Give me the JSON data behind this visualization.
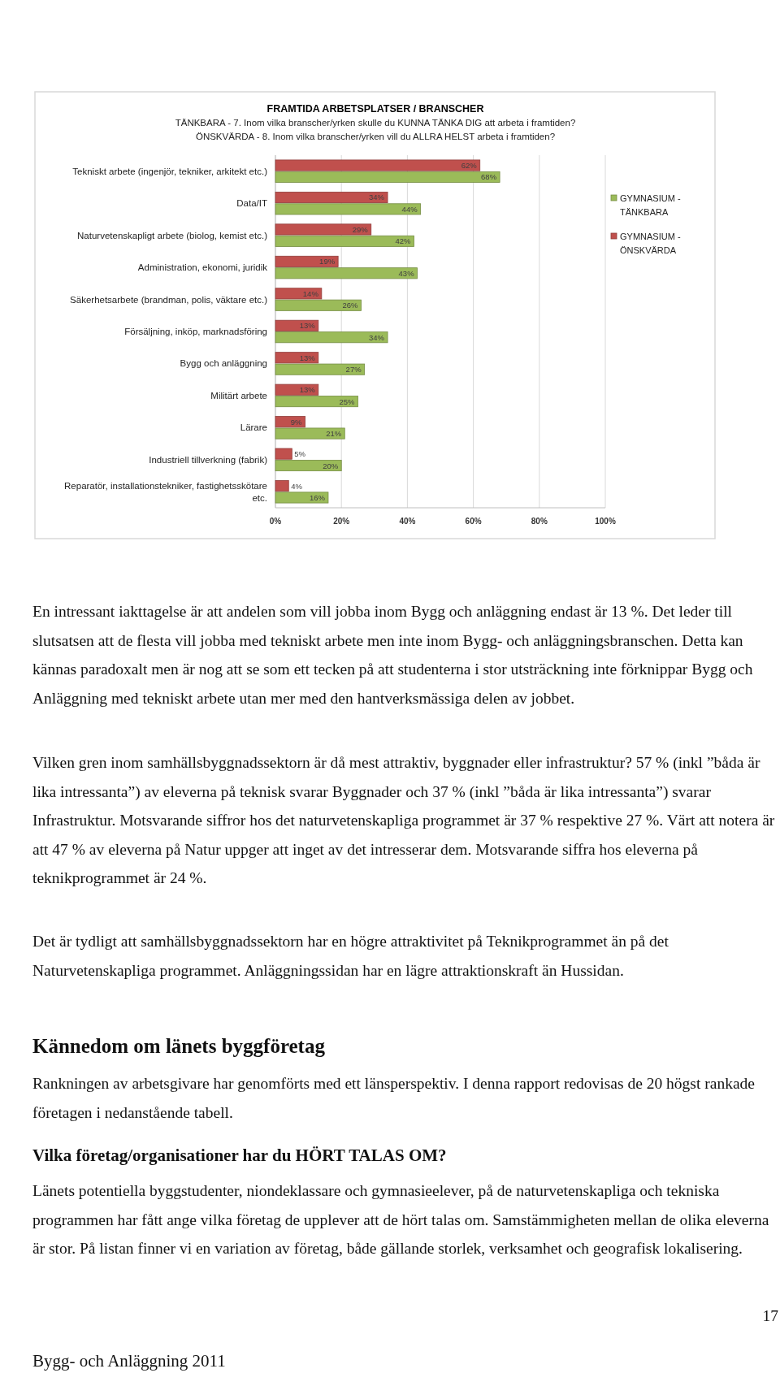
{
  "chart_data": {
    "type": "bar",
    "orientation": "horizontal",
    "title": "FRAMTIDA ARBETSPLATSER / BRANSCHER",
    "subtitle": "TÄNKBARA - 7. Inom vilka branscher/yrken skulle du KUNNA TÄNKA DIG att arbeta i framtiden?\nÖNSKVÄRDA - 8. Inom vilka branscher/yrken vill du ALLRA HELST arbeta i framtiden?",
    "categories": [
      "Tekniskt arbete (ingenjör, tekniker, arkitekt etc.)",
      "Data/IT",
      "Naturvetenskapligt arbete (biolog, kemist etc.)",
      "Administration, ekonomi, juridik",
      "Säkerhetsarbete (brandman, polis, väktare etc.)",
      "Försäljning, inköp, marknadsföring",
      "Bygg och anläggning",
      "Militärt arbete",
      "Lärare",
      "Industriell tillverkning (fabrik)",
      "Reparatör, installationstekniker, fastighetsskötare etc."
    ],
    "series": [
      {
        "name": "GYMNASIUM - TÄNKBARA",
        "color": "#9bbb59",
        "values": [
          68,
          44,
          42,
          43,
          26,
          34,
          27,
          25,
          21,
          20,
          16
        ],
        "value_labels": [
          "68%",
          "44%",
          "42%",
          "43%",
          "26%",
          "34%",
          "27%",
          "25%",
          "21%",
          "20%",
          "16%"
        ]
      },
      {
        "name": "GYMNASIUM - ÖNSKVÄRDA",
        "color": "#c0504d",
        "values": [
          62,
          34,
          29,
          19,
          14,
          13,
          13,
          13,
          9,
          5,
          4
        ],
        "value_labels": [
          "62%",
          "34%",
          "29%",
          "19%",
          "14%",
          "13%",
          "13%",
          "13%",
          "9%",
          "5%",
          "4%"
        ]
      }
    ],
    "xlim": [
      0,
      100
    ],
    "xticks": [
      {
        "value": 0,
        "label": "0%"
      },
      {
        "value": 20,
        "label": "20%"
      },
      {
        "value": 40,
        "label": "40%"
      },
      {
        "value": 60,
        "label": "60%"
      },
      {
        "value": 80,
        "label": "80%"
      },
      {
        "value": 100,
        "label": "100%"
      }
    ],
    "grid": "x",
    "legend": "right",
    "annotations": [
      "En intressant iakttagelse är att andelen som vill jobba inom Bygg och anläggning endast är 13 %. Det leder till slutsatsen att de flesta vill jobba med tekniskt arbete men inte inom Bygg- och anläggningsbranschen. Detta kan kännas paradoxalt men är nog att se som ett tecken på att studenterna i stor utsträckning inte förknippar Bygg och Anläggning med tekniskt arbete utan mer med den hantverksmässiga delen av jobbet.",
      "Vilken gren inom samhällsbyggnadssektorn är då mest attraktiv, byggnader eller infrastruktur? 57 % (inkl ”båda är lika intressanta”) av eleverna på teknisk svarar Byggnader och 37 % (inkl ”båda är lika intressanta”) svarar Infrastruktur. Motsvarande siffror hos det naturvetenskapliga programmet är 37 % respektive 27 %. Värt att notera är att 47 % av eleverna på Natur uppger att inget av det intresserar dem. Motsvarande siffra hos eleverna på teknikprogrammet är 24 %.",
      "Det är tydligt att samhällsbyggnadssektorn har en högre attraktivitet på Teknikprogrammet än på det Naturvetenskapliga programmet. Anläggningssidan har en lägre attraktionskraft än Hussidan.",
      "Kännedom om länets byggföretag",
      "Rankningen av arbetsgivare har genomförts med ett länsperspektiv. I denna rapport redovisas de 20 högst rankade företagen i nedanstående tabell.",
      "Vilka företag/organisationer har du HÖRT TALAS OM?",
      "Länets potentiella byggstudenter, niondeklassare och gymnasieelever, på de naturvetenskapliga och tekniska programmen har fått ange vilka företag de upplever att de hört talas om. Samstämmigheten mellan de olika eleverna är stor. På listan finner vi en variation av företag, både gällande storlek, verksamhet och geografisk lokalisering.",
      "17",
      "Bygg- och Anläggning 2011"
    ]
  }
}
